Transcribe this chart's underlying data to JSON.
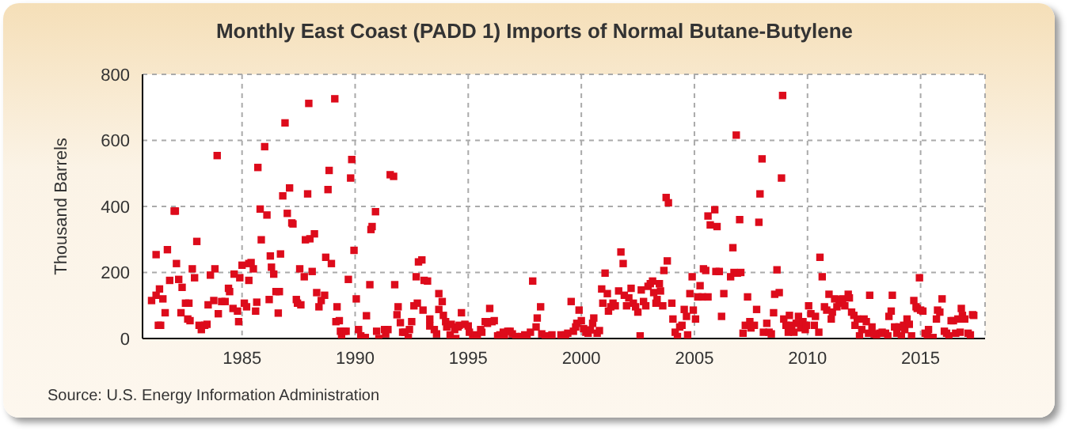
{
  "chart_data": {
    "type": "scatter",
    "title": "Monthly East Coast (PADD 1) Imports of Normal Butane-Butylene",
    "ylabel": "Thousand Barrels",
    "annotations": [
      "Source: U.S. Energy Information Administration"
    ],
    "color": "#dd0b1b",
    "marker": "square",
    "grid": true,
    "xlim": [
      1980.6,
      2017.85
    ],
    "xticks": [
      1985,
      1990,
      1995,
      2000,
      2005,
      2010,
      2015
    ],
    "ylim": [
      0,
      800
    ],
    "yticks": [
      0,
      200,
      400,
      600,
      800
    ],
    "x": [
      1981.0,
      1981.2,
      1981.2,
      1981.35,
      1981.3,
      1981.4,
      1981.5,
      1981.6,
      1981.7,
      1981.8,
      1982.0,
      1982.05,
      1982.1,
      1982.2,
      1982.3,
      1982.35,
      1982.5,
      1982.6,
      1982.65,
      1982.7,
      1982.8,
      1982.9,
      1983.0,
      1983.1,
      1983.2,
      1983.35,
      1983.45,
      1983.5,
      1983.6,
      1983.75,
      1983.8,
      1983.9,
      1983.95,
      1984.1,
      1984.25,
      1984.4,
      1984.45,
      1984.6,
      1984.65,
      1984.8,
      1984.85,
      1984.9,
      1985.0,
      1985.1,
      1985.2,
      1985.3,
      1985.3,
      1985.4,
      1985.5,
      1985.6,
      1985.65,
      1985.7,
      1985.8,
      1985.85,
      1986.0,
      1986.1,
      1986.2,
      1986.25,
      1986.3,
      1986.4,
      1986.5,
      1986.6,
      1986.65,
      1986.7,
      1986.8,
      1986.9,
      1987.0,
      1987.1,
      1987.2,
      1987.25,
      1987.4,
      1987.45,
      1987.55,
      1987.6,
      1987.75,
      1987.8,
      1987.9,
      1987.95,
      1988.0,
      1988.1,
      1988.2,
      1988.3,
      1988.4,
      1988.5,
      1988.65,
      1988.7,
      1988.8,
      1988.85,
      1988.95,
      1989.1,
      1989.15,
      1989.2,
      1989.3,
      1989.35,
      1989.4,
      1989.5,
      1989.6,
      1989.7,
      1989.8,
      1989.85,
      1989.95,
      1990.05,
      1990.15,
      1990.25,
      1990.45,
      1990.5,
      1990.65,
      1990.7,
      1990.75,
      1990.9,
      1990.95,
      1991.05,
      1991.3,
      1991.35,
      1991.45,
      1991.55,
      1991.7,
      1991.75,
      1991.85,
      1991.9,
      1992.0,
      1992.1,
      1992.2,
      1992.35,
      1992.4,
      1992.5,
      1992.6,
      1992.7,
      1992.75,
      1992.8,
      1992.95,
      1993.0,
      1993.05,
      1993.2,
      1993.3,
      1993.3,
      1993.5,
      1993.6,
      1993.7,
      1993.7,
      1993.85,
      1993.9,
      1994.0,
      1994.05,
      1994.2,
      1994.25,
      1994.4,
      1994.45,
      1994.55,
      1994.6,
      1994.7,
      1994.85,
      1995.0,
      1995.05,
      1995.2,
      1995.3,
      1995.4,
      1995.55,
      1995.6,
      1995.75,
      1995.85,
      1995.95,
      1996.05,
      1996.15,
      1996.3,
      1996.4,
      1996.55,
      1996.6,
      1996.75,
      1996.85,
      1996.95,
      1997.1,
      1997.35,
      1997.5,
      1997.6,
      1997.75,
      1997.85,
      1998.0,
      1998.05,
      1998.2,
      1998.25,
      1998.4,
      1998.7,
      1999.1,
      1999.3,
      1999.4,
      1999.55,
      1999.65,
      1999.75,
      1999.8,
      1999.9,
      2000.0,
      2000.1,
      2000.2,
      2000.3,
      2000.4,
      2000.5,
      2000.55,
      2000.7,
      2000.8,
      2000.9,
      2000.95,
      2001.05,
      2001.15,
      2001.2,
      2001.3,
      2001.4,
      2001.5,
      2001.65,
      2001.75,
      2001.85,
      2001.9,
      2002.0,
      2002.1,
      2002.2,
      2002.3,
      2002.4,
      2002.5,
      2002.6,
      2002.65,
      2002.75,
      2002.85,
      2002.95,
      2003.05,
      2003.15,
      2003.2,
      2003.3,
      2003.35,
      2003.45,
      2003.5,
      2003.6,
      2003.65,
      2003.75,
      2003.8,
      2003.85,
      2004.0,
      2004.05,
      2004.15,
      2004.25,
      2004.35,
      2004.45,
      2004.55,
      2004.65,
      2004.7,
      2004.8,
      2004.9,
      2004.95,
      2005.05,
      2005.15,
      2005.25,
      2005.35,
      2005.4,
      2005.5,
      2005.6,
      2005.6,
      2005.7,
      2005.9,
      2005.95,
      2006.0,
      2006.1,
      2006.2,
      2006.3,
      2006.6,
      2006.7,
      2006.75,
      2006.85,
      2006.9,
      2007.0,
      2007.05,
      2007.15,
      2007.25,
      2007.35,
      2007.45,
      2007.5,
      2007.65,
      2007.75,
      2007.85,
      2007.9,
      2007.99,
      2008.05,
      2008.2,
      2008.3,
      2008.4,
      2008.5,
      2008.55,
      2008.65,
      2008.75,
      2008.85,
      2008.9,
      2008.95,
      2009.05,
      2009.15,
      2009.2,
      2009.3,
      2009.4,
      2009.5,
      2009.6,
      2009.7,
      2009.8,
      2009.9,
      2009.95,
      2010.05,
      2010.15,
      2010.3,
      2010.35,
      2010.5,
      2010.55,
      2010.65,
      2010.75,
      2010.85,
      2010.95,
      2011.05,
      2011.1,
      2011.2,
      2011.3,
      2011.4,
      2011.5,
      2011.55,
      2011.65,
      2011.8,
      2011.85,
      2011.95,
      2012.05,
      2012.1,
      2012.2,
      2012.3,
      2012.4,
      2012.5,
      2012.6,
      2012.7,
      2012.75,
      2012.85,
      2012.95,
      2013.05,
      2013.2,
      2013.3,
      2013.45,
      2013.55,
      2013.6,
      2013.7,
      2013.75,
      2013.85,
      2013.95,
      2014.05,
      2014.15,
      2014.25,
      2014.3,
      2014.4,
      2014.5,
      2014.6,
      2014.7,
      2014.8,
      2014.85,
      2014.95,
      2015.0,
      2015.1,
      2015.2,
      2015.3,
      2015.35,
      2015.55,
      2015.7,
      2015.75,
      2015.85,
      2015.95,
      2016.05,
      2016.15,
      2016.25,
      2016.35,
      2016.45,
      2016.55,
      2016.65,
      2016.75,
      2016.8,
      2016.85,
      2016.95,
      2017.1,
      2017.2,
      2017.3,
      2017.35
    ],
    "values": [
      115,
      131,
      254,
      150,
      40,
      40,
      120,
      78,
      269,
      176,
      386,
      386,
      227,
      179,
      78,
      155,
      107,
      59,
      107,
      54,
      211,
      184,
      294,
      40,
      27,
      40,
      43,
      102,
      192,
      115,
      211,
      554,
      75,
      112,
      112,
      152,
      142,
      91,
      195,
      83,
      51,
      184,
      222,
      107,
      96,
      176,
      227,
      230,
      211,
      83,
      110,
      518,
      392,
      299,
      581,
      374,
      118,
      250,
      216,
      195,
      142,
      77,
      142,
      256,
      432,
      653,
      379,
      456,
      350,
      347,
      118,
      107,
      211,
      102,
      187,
      299,
      438,
      712,
      302,
      203,
      317,
      139,
      96,
      115,
      131,
      246,
      451,
      509,
      227,
      726,
      51,
      96,
      54,
      22,
      3,
      22,
      22,
      179,
      486,
      542,
      267,
      120,
      27,
      8,
      3,
      69,
      163,
      330,
      339,
      384,
      22,
      0,
      27,
      14,
      27,
      496,
      491,
      163,
      72,
      96,
      48,
      19,
      19,
      3,
      27,
      51,
      99,
      187,
      107,
      232,
      238,
      86,
      176,
      174,
      38,
      59,
      27,
      14,
      136,
      88,
      112,
      70,
      51,
      35,
      11,
      43,
      27,
      0,
      35,
      40,
      78,
      43,
      38,
      19,
      6,
      11,
      6,
      27,
      19,
      51,
      46,
      91,
      51,
      54,
      8,
      11,
      19,
      11,
      22,
      22,
      14,
      6,
      6,
      11,
      3,
      19,
      174,
      35,
      62,
      96,
      14,
      8,
      11,
      11,
      11,
      16,
      112,
      22,
      35,
      46,
      86,
      54,
      30,
      19,
      16,
      26,
      46,
      62,
      16,
      24,
      150,
      107,
      198,
      136,
      83,
      96,
      107,
      99,
      144,
      262,
      227,
      131,
      99,
      123,
      152,
      107,
      96,
      80,
      8,
      147,
      112,
      99,
      158,
      166,
      174,
      139,
      107,
      118,
      166,
      144,
      99,
      206,
      427,
      235,
      411,
      107,
      59,
      19,
      6,
      35,
      40,
      88,
      67,
      11,
      136,
      187,
      86,
      59,
      126,
      160,
      126,
      211,
      206,
      126,
      371,
      344,
      390,
      203,
      339,
      203,
      67,
      136,
      187,
      275,
      200,
      616,
      198,
      360,
      200,
      16,
      40,
      126,
      51,
      32,
      40,
      88,
      352,
      438,
      544,
      19,
      46,
      19,
      14,
      78,
      134,
      208,
      139,
      486,
      736,
      59,
      40,
      19,
      70,
      40,
      19,
      46,
      67,
      32,
      51,
      27,
      40,
      99,
      75,
      40,
      67,
      19,
      246,
      187,
      96,
      86,
      134,
      59,
      80,
      120,
      96,
      107,
      118,
      120,
      99,
      134,
      123,
      80,
      70,
      40,
      59,
      8,
      27,
      59,
      51,
      16,
      131,
      35,
      14,
      8,
      16,
      19,
      16,
      8,
      67,
      83,
      131,
      35,
      16,
      35,
      8,
      40,
      27,
      59,
      43,
      8,
      115,
      96,
      91,
      184,
      86,
      83,
      16,
      6,
      27,
      3,
      59,
      86,
      80,
      120,
      22,
      16,
      8,
      54,
      54,
      16,
      59,
      19,
      91,
      70,
      59,
      16,
      11,
      72,
      70
    ]
  }
}
